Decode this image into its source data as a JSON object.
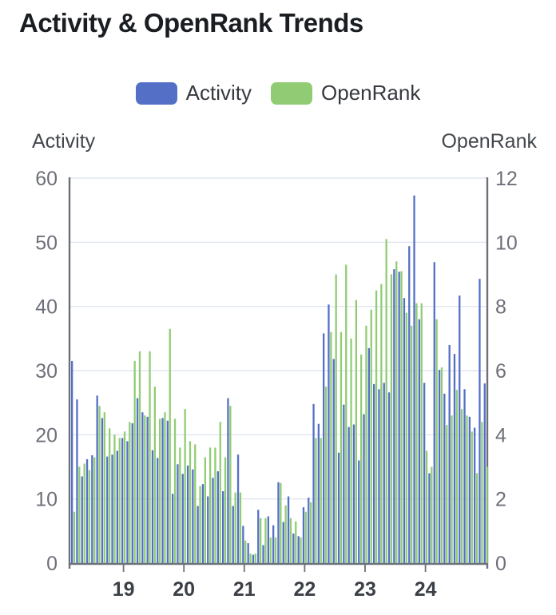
{
  "title": "Activity & OpenRank Trends",
  "legend": {
    "items": [
      {
        "label": "Activity",
        "color": "#5470c6"
      },
      {
        "label": "OpenRank",
        "color": "#91cc75"
      }
    ]
  },
  "axes": {
    "left_name": "Activity",
    "right_name": "OpenRank",
    "left_ticks": [
      0,
      10,
      20,
      30,
      40,
      50,
      60
    ],
    "right_ticks": [
      0,
      2,
      4,
      6,
      8,
      10,
      12
    ],
    "x_tick_labels": [
      "19",
      "20",
      "21",
      "22",
      "23",
      "24"
    ]
  },
  "colors": {
    "activity": "#5470c6",
    "openrank": "#91cc75",
    "grid": "#E0E6F1",
    "axis_line": "#6E7079",
    "y_label": "#6E7079",
    "x_label": "#3b3f46"
  },
  "chart_data": {
    "type": "bar",
    "title": "Activity & OpenRank Trends",
    "xlabel": "",
    "ylabel_left": "Activity",
    "ylabel_right": "OpenRank",
    "y_left": {
      "name": "Activity",
      "min": 0,
      "max": 60
    },
    "y_right": {
      "name": "OpenRank",
      "min": 0,
      "max": 12
    },
    "grid": true,
    "legend_position": "top-center",
    "x": [
      "2018-03",
      "2018-04",
      "2018-05",
      "2018-06",
      "2018-07",
      "2018-08",
      "2018-09",
      "2018-10",
      "2018-11",
      "2018-12",
      "2019-01",
      "2019-02",
      "2019-03",
      "2019-04",
      "2019-05",
      "2019-06",
      "2019-07",
      "2019-08",
      "2019-09",
      "2019-10",
      "2019-11",
      "2019-12",
      "2020-01",
      "2020-02",
      "2020-03",
      "2020-04",
      "2020-05",
      "2020-06",
      "2020-07",
      "2020-08",
      "2020-09",
      "2020-10",
      "2020-11",
      "2020-12",
      "2021-01",
      "2021-02",
      "2021-03",
      "2021-04",
      "2021-05",
      "2021-06",
      "2021-07",
      "2021-08",
      "2021-09",
      "2021-10",
      "2021-11",
      "2021-12",
      "2022-01",
      "2022-02",
      "2022-03",
      "2022-04",
      "2022-05",
      "2022-06",
      "2022-07",
      "2022-08",
      "2022-09",
      "2022-10",
      "2022-11",
      "2022-12",
      "2023-01",
      "2023-02",
      "2023-03",
      "2023-04",
      "2023-05",
      "2023-06",
      "2023-07",
      "2023-08",
      "2023-09",
      "2023-10",
      "2023-11",
      "2023-12",
      "2024-01",
      "2024-02",
      "2024-03",
      "2024-04",
      "2024-05",
      "2024-06",
      "2024-07",
      "2024-08",
      "2024-09",
      "2024-10",
      "2024-11",
      "2024-12",
      "2025-01"
    ],
    "x_axis_year_ticks": {
      "labels": [
        "19",
        "20",
        "21",
        "22",
        "23",
        "24"
      ],
      "month_index": [
        10,
        22,
        34,
        46,
        58,
        70
      ]
    },
    "series": [
      {
        "name": "Activity",
        "axis": "left",
        "color": "#5470c6",
        "values": [
          31.5,
          25.5,
          13.5,
          16.2,
          16.8,
          26.1,
          22.6,
          16.6,
          16.9,
          17.5,
          19.5,
          19.0,
          21.8,
          25.7,
          23.5,
          22.8,
          17.6,
          16.4,
          22.6,
          22.2,
          10.8,
          15.4,
          13.9,
          15.2,
          14.6,
          8.9,
          12.3,
          10.4,
          13.3,
          14.3,
          11.2,
          25.7,
          8.9,
          16.9,
          5.8,
          3.1,
          1.3,
          8.3,
          2.8,
          7.3,
          5.9,
          12.6,
          6.4,
          10.4,
          4.6,
          4.2,
          8.7,
          10.2,
          24.8,
          21.7,
          35.8,
          40.3,
          31.8,
          17.2,
          24.7,
          21.2,
          21.6,
          16.0,
          23.2,
          33.5,
          27.9,
          27.1,
          28.1,
          26.6,
          45.8,
          45.4,
          41.3,
          49.4,
          57.3,
          38.0,
          28.1,
          14.0,
          46.9,
          30.1,
          26.4,
          34.0,
          32.6,
          41.7,
          27.1,
          22.8,
          21.1,
          44.3,
          28.0
        ]
      },
      {
        "name": "OpenRank",
        "axis": "right",
        "color": "#91cc75",
        "values": [
          1.6,
          3.0,
          3.1,
          2.9,
          3.3,
          4.9,
          4.7,
          4.2,
          4.0,
          3.9,
          4.1,
          4.4,
          6.3,
          6.6,
          4.6,
          6.6,
          5.5,
          4.5,
          4.7,
          7.3,
          4.5,
          3.6,
          4.8,
          3.8,
          3.7,
          2.4,
          3.3,
          3.6,
          3.6,
          4.4,
          3.3,
          4.9,
          2.2,
          2.2,
          0.7,
          0.3,
          0.3,
          1.4,
          1.4,
          0.8,
          0.8,
          2.5,
          1.8,
          1.4,
          1.3,
          0.8,
          1.6,
          1.9,
          3.9,
          3.9,
          5.5,
          7.2,
          9.0,
          7.2,
          9.3,
          7.0,
          8.2,
          6.5,
          7.4,
          7.9,
          8.5,
          8.7,
          10.1,
          9.0,
          9.4,
          9.1,
          7.8,
          7.4,
          8.1,
          8.1,
          3.5,
          3.0,
          7.6,
          6.1,
          4.3,
          4.6,
          5.4,
          4.8,
          4.6,
          4.1,
          2.8,
          4.4,
          3.0
        ]
      }
    ]
  }
}
